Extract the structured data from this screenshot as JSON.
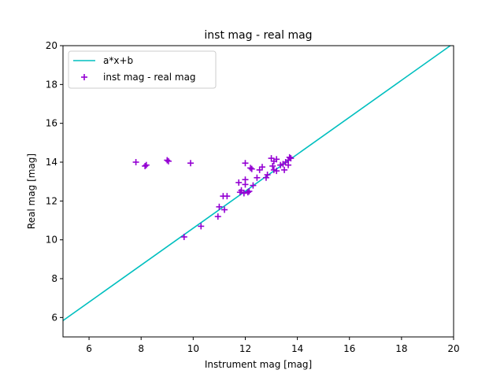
{
  "chart_data": {
    "type": "scatter",
    "title": "inst mag - real mag",
    "xlabel": "Instrument mag [mag]",
    "ylabel": "Real mag [mag]",
    "xlim": [
      5,
      20
    ],
    "ylim": [
      5,
      20
    ],
    "xticks": [
      "6",
      "8",
      "10",
      "12",
      "14",
      "16",
      "18",
      "20"
    ],
    "yticks": [
      "6",
      "8",
      "10",
      "12",
      "14",
      "16",
      "18",
      "20"
    ],
    "grid": false,
    "legend": "top-left",
    "series": [
      {
        "name": "a*x+b",
        "kind": "line",
        "color": "#00bfbf",
        "x": [
          5,
          20
        ],
        "y": [
          5.84,
          20.12
        ]
      },
      {
        "name": "inst mag - real mag",
        "kind": "scatter",
        "marker": "plus",
        "color": "#9400d3",
        "points": [
          [
            7.8,
            14.0
          ],
          [
            8.15,
            13.8
          ],
          [
            8.2,
            13.85
          ],
          [
            9.0,
            14.1
          ],
          [
            9.05,
            14.05
          ],
          [
            9.9,
            13.95
          ],
          [
            9.65,
            10.15
          ],
          [
            10.3,
            10.7
          ],
          [
            10.95,
            11.2
          ],
          [
            11.0,
            11.7
          ],
          [
            11.2,
            11.55
          ],
          [
            11.15,
            12.25
          ],
          [
            11.3,
            12.25
          ],
          [
            11.75,
            12.95
          ],
          [
            11.8,
            12.45
          ],
          [
            11.85,
            12.55
          ],
          [
            11.95,
            12.4
          ],
          [
            12.0,
            12.85
          ],
          [
            12.0,
            13.1
          ],
          [
            12.0,
            13.95
          ],
          [
            12.1,
            12.45
          ],
          [
            12.15,
            12.5
          ],
          [
            12.2,
            13.7
          ],
          [
            12.25,
            13.65
          ],
          [
            12.3,
            12.8
          ],
          [
            12.45,
            13.2
          ],
          [
            12.55,
            13.6
          ],
          [
            12.65,
            13.75
          ],
          [
            12.8,
            13.2
          ],
          [
            12.85,
            13.35
          ],
          [
            13.0,
            14.2
          ],
          [
            13.05,
            13.8
          ],
          [
            13.1,
            13.6
          ],
          [
            13.1,
            14.05
          ],
          [
            13.2,
            14.15
          ],
          [
            13.2,
            13.55
          ],
          [
            13.35,
            13.85
          ],
          [
            13.45,
            13.9
          ],
          [
            13.5,
            13.6
          ],
          [
            13.55,
            14.0
          ],
          [
            13.65,
            14.1
          ],
          [
            13.65,
            13.85
          ],
          [
            13.7,
            14.25
          ],
          [
            13.75,
            14.2
          ]
        ]
      }
    ]
  }
}
